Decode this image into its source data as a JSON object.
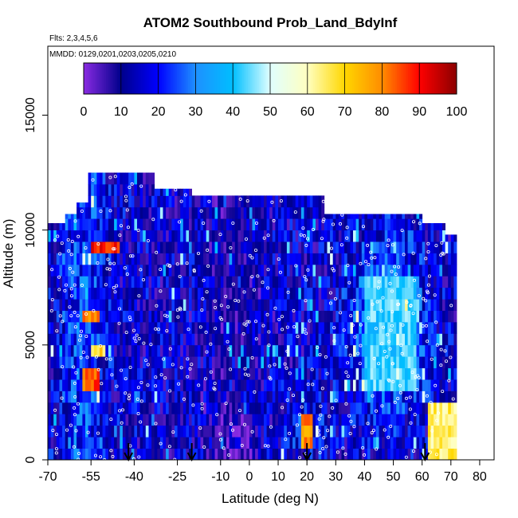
{
  "chart_data": {
    "type": "heatmap",
    "title": "ATOM2 Southbound Prob_Land_BdyInf",
    "subtitle_flights": "Flts: 2,3,4,5,6",
    "subtitle_dates": "MMDD: 0129,0201,0203,0205,0210",
    "xlabel": "Latitude (deg N)",
    "ylabel": "Altitude (m)",
    "xlim": [
      -70,
      85
    ],
    "ylim": [
      0,
      18000
    ],
    "x_ticks": [
      -70,
      -55,
      -40,
      -25,
      -10,
      0,
      10,
      20,
      30,
      40,
      50,
      60,
      70,
      80
    ],
    "y_ticks": [
      0,
      5000,
      10000,
      15000
    ],
    "colorbar": {
      "range": [
        0,
        100
      ],
      "ticks": [
        0,
        10,
        20,
        30,
        40,
        50,
        60,
        70,
        80,
        90,
        100
      ],
      "stops": [
        "#8a2be2",
        "#00008b",
        "#0000ff",
        "#1e90ff",
        "#00bfff",
        "#e0ffff",
        "#ffffc0",
        "#ffd700",
        "#ff8c00",
        "#ff0000",
        "#8b0000"
      ]
    },
    "flight_boundary_arrows_lat": [
      -42,
      -20,
      20,
      61
    ],
    "grid": false,
    "approx_cells": [
      {
        "lat": [
          -55,
          -45
        ],
        "alt": [
          8900,
          9500
        ],
        "value": 95
      },
      {
        "lat": [
          -58,
          -52
        ],
        "alt": [
          3000,
          4000
        ],
        "value": 90
      },
      {
        "lat": [
          -58,
          -52
        ],
        "alt": [
          6000,
          6500
        ],
        "value": 85
      },
      {
        "lat": [
          -55,
          -50
        ],
        "alt": [
          4500,
          5000
        ],
        "value": 75
      },
      {
        "lat": [
          18,
          22
        ],
        "alt": [
          500,
          1800
        ],
        "value": 85
      },
      {
        "lat": [
          62,
          72
        ],
        "alt": [
          0,
          2500
        ],
        "value": 70
      },
      {
        "lat": [
          40,
          58
        ],
        "alt": [
          3000,
          8000
        ],
        "value": 48
      },
      {
        "lat": [
          -20,
          10
        ],
        "alt": [
          2000,
          11000
        ],
        "value": 12
      }
    ]
  }
}
